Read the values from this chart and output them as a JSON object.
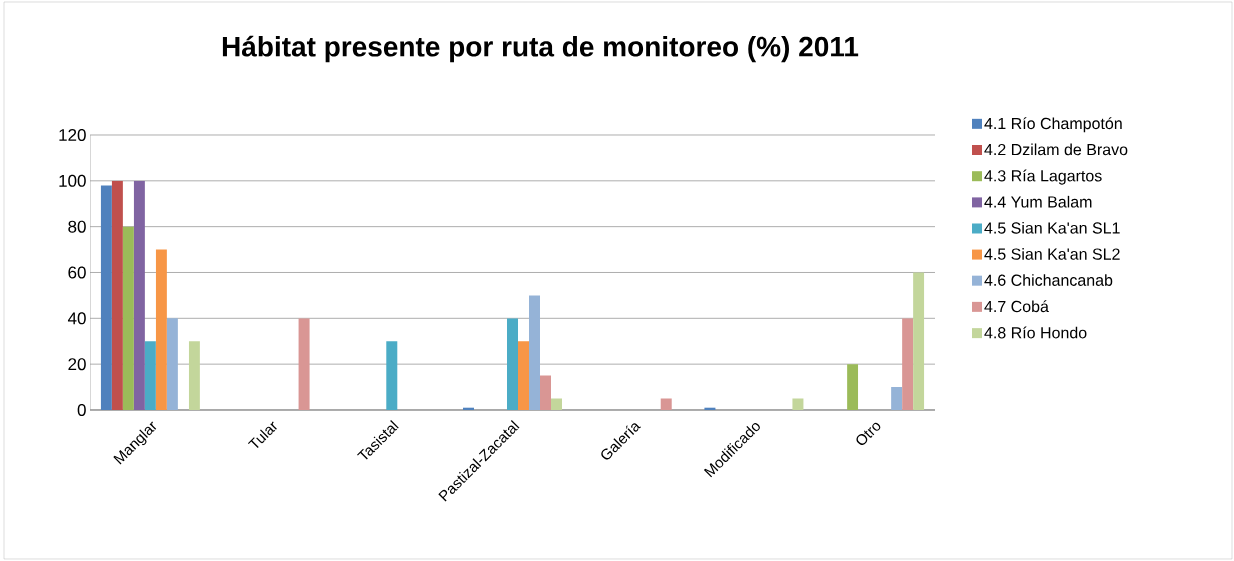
{
  "chart_data": {
    "type": "bar",
    "title": "Hábitat presente por ruta de monitoreo (%) 2011",
    "categories": [
      "Manglar",
      "Tular",
      "Tasistal",
      "Pastizal-Zacatal",
      "Galería",
      "Modificado",
      "Otro"
    ],
    "series": [
      {
        "name": "4.1 Río Champotón",
        "color": "#4f81bd",
        "values": [
          98,
          0,
          0,
          1,
          0,
          1,
          0
        ]
      },
      {
        "name": "4.2 Dzilam de Bravo",
        "color": "#c0504d",
        "values": [
          100,
          0,
          0,
          0,
          0,
          0,
          0
        ]
      },
      {
        "name": "4.3 Ría Lagartos",
        "color": "#9bbb59",
        "values": [
          80,
          0,
          0,
          0,
          0,
          0,
          20
        ]
      },
      {
        "name": "4.4 Yum Balam",
        "color": "#8064a2",
        "values": [
          100,
          0,
          0,
          0,
          0,
          0,
          0
        ]
      },
      {
        "name": "4.5 Sian Ka'an SL1",
        "color": "#4bacc6",
        "values": [
          30,
          0,
          30,
          40,
          0,
          0,
          0
        ]
      },
      {
        "name": "4.5 Sian Ka'an SL2",
        "color": "#f79646",
        "values": [
          70,
          0,
          0,
          30,
          0,
          0,
          0
        ]
      },
      {
        "name": "4.6 Chichancanab",
        "color": "#95b3d7",
        "values": [
          40,
          0,
          0,
          50,
          0,
          0,
          10
        ]
      },
      {
        "name": "4.7 Cobá",
        "color": "#d99694",
        "values": [
          0,
          40,
          0,
          15,
          5,
          0,
          40
        ]
      },
      {
        "name": "4.8 Río Hondo",
        "color": "#c3d69b",
        "values": [
          30,
          0,
          0,
          5,
          0,
          5,
          60
        ]
      }
    ],
    "ylim": [
      0,
      120
    ],
    "yticks": [
      0,
      20,
      40,
      60,
      80,
      100,
      120
    ],
    "grid": "y",
    "legend": "right"
  }
}
